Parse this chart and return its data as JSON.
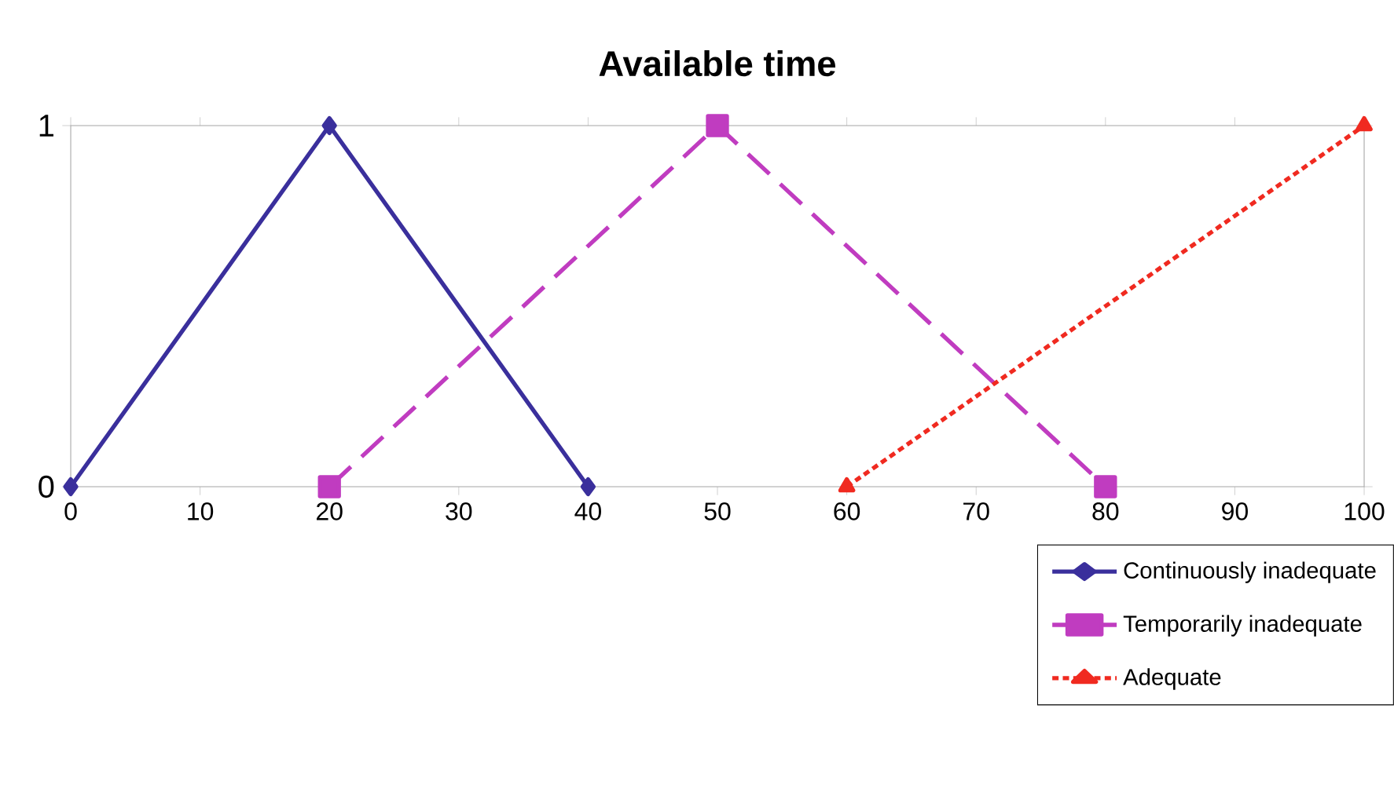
{
  "chart_data": {
    "type": "line",
    "title": "Available time",
    "xlim": [
      0,
      100
    ],
    "ylim": [
      0,
      1
    ],
    "xticks": [
      0,
      10,
      20,
      30,
      40,
      50,
      60,
      70,
      80,
      90,
      100
    ],
    "yticks": [
      0,
      1
    ],
    "grid": false,
    "legend": "bottom right",
    "series": [
      {
        "name": "Continuously inadequate",
        "color": "#3a2f9c",
        "x": [
          0,
          20,
          40
        ],
        "values": [
          0,
          1,
          0
        ],
        "marker": "diamond",
        "line_style": "solid"
      },
      {
        "name": "Temporarily inadequate",
        "color": "#c03cc0",
        "x": [
          20,
          50,
          80
        ],
        "values": [
          0,
          1,
          0
        ],
        "marker": "square",
        "line_style": "dashed"
      },
      {
        "name": "Adequate",
        "color": "#f02a20",
        "x": [
          60,
          100
        ],
        "values": [
          0,
          1
        ],
        "marker": "triangle",
        "line_style": "dotted"
      }
    ]
  }
}
